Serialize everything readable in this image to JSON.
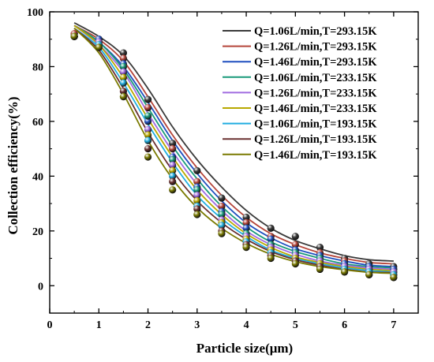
{
  "chart_data": {
    "type": "scatter",
    "title": "",
    "xlabel": "Particle size(μm)",
    "ylabel": "Collection efficiency(%)",
    "xlim": [
      0,
      7.5
    ],
    "ylim": [
      -10,
      100
    ],
    "xticks": [
      0,
      1,
      2,
      3,
      4,
      5,
      6,
      7
    ],
    "yticks": [
      0,
      20,
      40,
      60,
      80,
      100
    ],
    "grid": false,
    "legend_position": "top-right",
    "x": [
      0.5,
      1,
      1.5,
      2,
      2.5,
      3,
      3.5,
      4,
      4.5,
      5,
      5.5,
      6,
      6.5,
      7
    ],
    "series": [
      {
        "name": "Q=1.06L/min,T=293.15K",
        "color": "#3a3a3a",
        "values": [
          92,
          90,
          85,
          68,
          52,
          42,
          32,
          25,
          21,
          18,
          14,
          10,
          8,
          7
        ],
        "fit": [
          96,
          91,
          84,
          72,
          58,
          46,
          36,
          27.5,
          21,
          16.5,
          13.5,
          11,
          9.5,
          9
        ]
      },
      {
        "name": "Q=1.26L/min,T=293.15K",
        "color": "#b5453a",
        "values": [
          92,
          90,
          83,
          65,
          50,
          38,
          29,
          23,
          18,
          15,
          12,
          9,
          7,
          6
        ],
        "fit": [
          95,
          90,
          82,
          69,
          55,
          43,
          33,
          25,
          19,
          15,
          12,
          10,
          8.5,
          8
        ]
      },
      {
        "name": "Q=1.46L/min,T=293.15K",
        "color": "#1f4fbf",
        "values": [
          91,
          90,
          81,
          60,
          47,
          36,
          27,
          21,
          17,
          13,
          11,
          8,
          7,
          6
        ],
        "fit": [
          95,
          89,
          80,
          67,
          53,
          41,
          31,
          23,
          17.5,
          13.5,
          11,
          9,
          7.5,
          7
        ]
      },
      {
        "name": "Q=1.06L/min,T=233.15K",
        "color": "#1a9a7a",
        "values": [
          91,
          89,
          80,
          62,
          46,
          35,
          26,
          19,
          15,
          12,
          10,
          7,
          6,
          5
        ],
        "fit": [
          95,
          89,
          79,
          65,
          51,
          39,
          29,
          21.5,
          16,
          12.5,
          10,
          8,
          7,
          6.5
        ]
      },
      {
        "name": "Q=1.26L/min,T=233.15K",
        "color": "#a06be0",
        "values": [
          91,
          89,
          78,
          57,
          44,
          33,
          24,
          18,
          14,
          11,
          9,
          7,
          6,
          5
        ],
        "fit": [
          95,
          88,
          78,
          63,
          49,
          37,
          27.5,
          20,
          15,
          11.5,
          9,
          7.5,
          6.5,
          6
        ]
      },
      {
        "name": "Q=1.46L/min,T=233.15K",
        "color": "#b8a800",
        "values": [
          91,
          88,
          76,
          55,
          42,
          31,
          23,
          17,
          13,
          10,
          8,
          6,
          5,
          4
        ],
        "fit": [
          95,
          88,
          76,
          61,
          47,
          35,
          26,
          19,
          14,
          10.5,
          8.5,
          7,
          6,
          5.5
        ]
      },
      {
        "name": "Q=1.06L/min,T=193.15K",
        "color": "#22aee0",
        "values": [
          91,
          88,
          74,
          53,
          40,
          29,
          22,
          16,
          12,
          9,
          7,
          6,
          5,
          4
        ],
        "fit": [
          94,
          87,
          74,
          59,
          45,
          33,
          24.5,
          18,
          13,
          10,
          8,
          6.5,
          5.5,
          5
        ]
      },
      {
        "name": "Q=1.26L/min,T=193.15K",
        "color": "#6a3030",
        "values": [
          91,
          87,
          71,
          50,
          38,
          28,
          20,
          15,
          11,
          9,
          7,
          5,
          4,
          3
        ],
        "fit": [
          94,
          86,
          72,
          56,
          42,
          31,
          23,
          17,
          12.5,
          9.5,
          7.5,
          6,
          5,
          4.8
        ]
      },
      {
        "name": "Q=1.46L/min,T=193.15K",
        "color": "#7a7a00",
        "values": [
          91,
          87,
          69,
          47,
          35,
          26,
          19,
          14,
          10,
          8,
          6,
          5,
          4,
          3
        ],
        "fit": [
          94,
          85,
          70,
          53,
          39,
          28.5,
          21,
          15.5,
          11.5,
          8.8,
          7,
          5.8,
          4.9,
          4.5
        ]
      }
    ]
  }
}
